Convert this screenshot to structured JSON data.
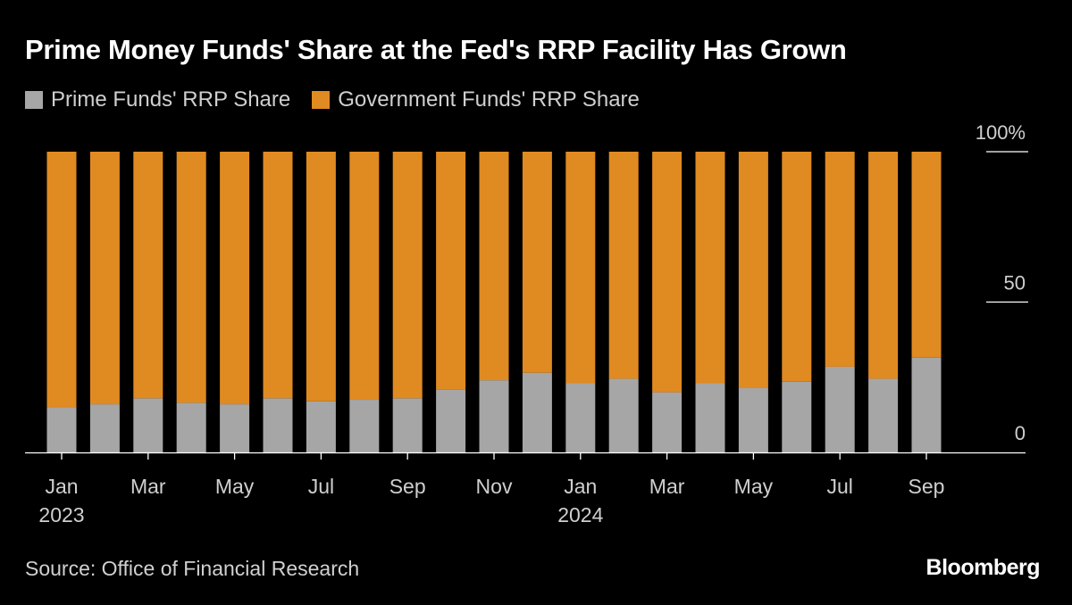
{
  "chart_data": {
    "type": "bar",
    "stacked": true,
    "title": "Prime Money Funds' Share at the Fed's RRP Facility Has Grown",
    "xlabel": "",
    "ylabel": "",
    "ylim": [
      0,
      100
    ],
    "y_ticks": [
      {
        "value": 100,
        "label": "100%"
      },
      {
        "value": 50,
        "label": "50"
      },
      {
        "value": 0,
        "label": "0"
      }
    ],
    "x_tick_labels": [
      {
        "bar_index": 0,
        "month": "Jan",
        "year": "2023"
      },
      {
        "bar_index": 2,
        "month": "Mar",
        "year": ""
      },
      {
        "bar_index": 4,
        "month": "May",
        "year": ""
      },
      {
        "bar_index": 6,
        "month": "Jul",
        "year": ""
      },
      {
        "bar_index": 8,
        "month": "Sep",
        "year": ""
      },
      {
        "bar_index": 10,
        "month": "Nov",
        "year": ""
      },
      {
        "bar_index": 12,
        "month": "Jan",
        "year": "2024"
      },
      {
        "bar_index": 14,
        "month": "Mar",
        "year": ""
      },
      {
        "bar_index": 16,
        "month": "May",
        "year": ""
      },
      {
        "bar_index": 18,
        "month": "Jul",
        "year": ""
      },
      {
        "bar_index": 20,
        "month": "Sep",
        "year": ""
      }
    ],
    "categories": [
      "2023-01",
      "2023-02",
      "2023-03",
      "2023-04",
      "2023-05",
      "2023-06",
      "2023-07",
      "2023-08",
      "2023-09",
      "2023-10",
      "2023-11",
      "2023-12",
      "2024-01",
      "2024-02",
      "2024-03",
      "2024-04",
      "2024-05",
      "2024-06",
      "2024-07",
      "2024-08",
      "2024-09"
    ],
    "series": [
      {
        "name": "Prime Funds' RRP Share",
        "color": "#a6a6a6",
        "values": [
          15,
          16,
          18,
          16.5,
          16,
          18,
          17,
          17.5,
          18,
          21,
          24,
          26.5,
          23,
          24.5,
          20,
          23,
          21.5,
          23.5,
          28.5,
          24.5,
          31.5
        ]
      },
      {
        "name": "Government Funds' RRP Share",
        "color": "#e08a22",
        "values": [
          85,
          84,
          82,
          83.5,
          84,
          82,
          83,
          82.5,
          82,
          79,
          76,
          73.5,
          77,
          75.5,
          80,
          77,
          78.5,
          76.5,
          71.5,
          75.5,
          68.5
        ]
      }
    ],
    "legend": "top-left",
    "grid": false
  },
  "source": "Source: Office of Financial Research",
  "brand": "Bloomberg"
}
